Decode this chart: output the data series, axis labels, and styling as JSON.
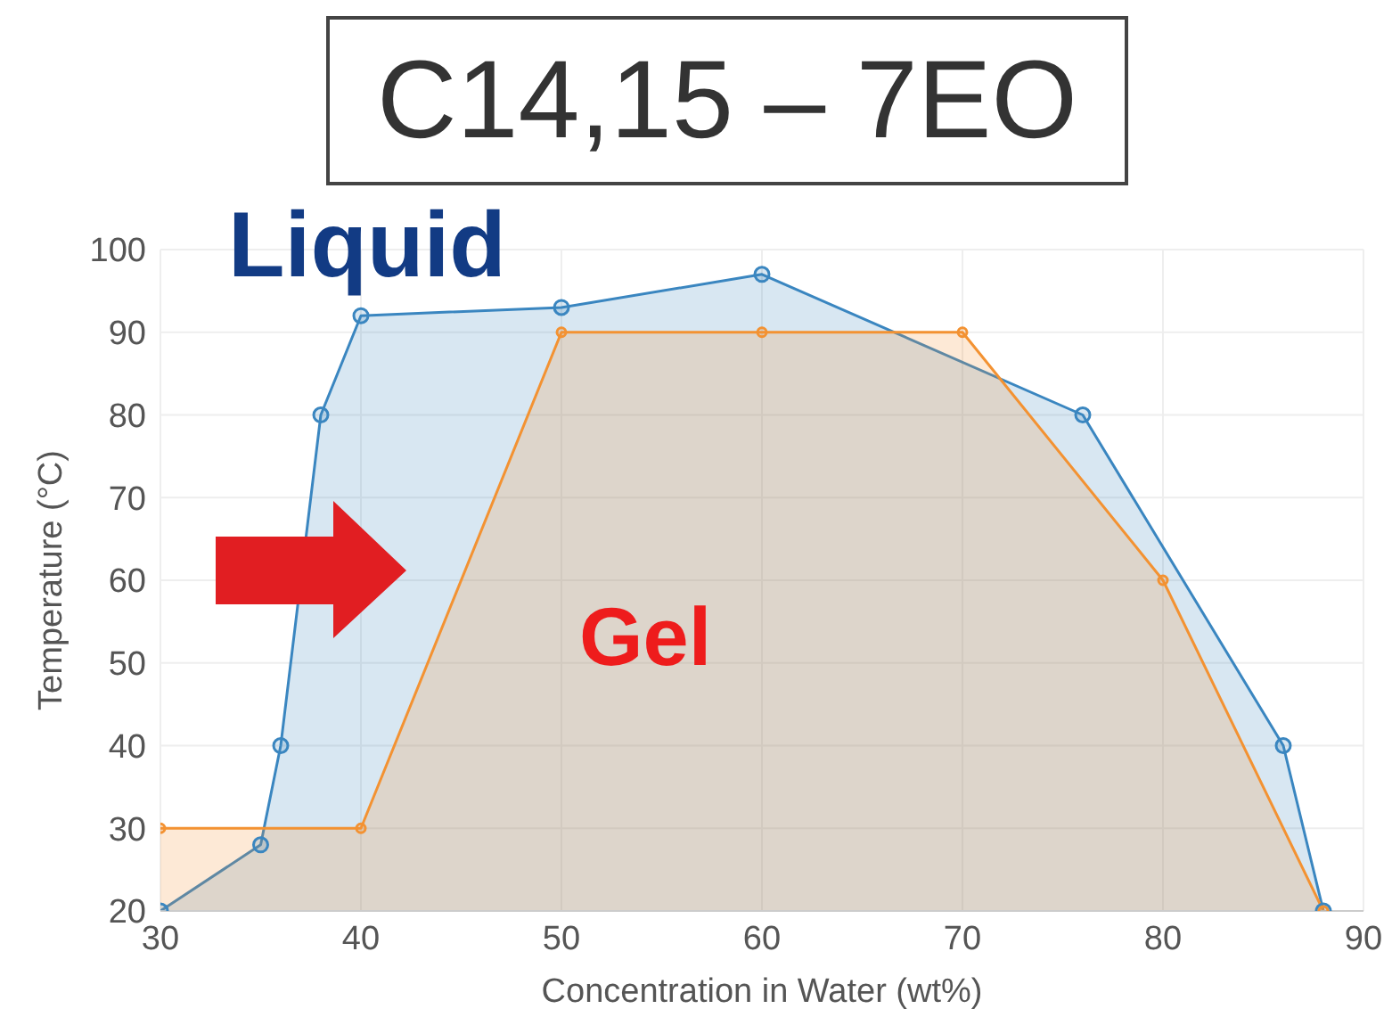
{
  "chart_data": {
    "type": "area",
    "title": "C14,15 – 7EO",
    "xlabel": "Concentration in Water (wt%)",
    "ylabel": "Temperature (°C)",
    "annotations": [
      "Liquid",
      "Gel"
    ],
    "series": [
      {
        "color": "#3a86c0",
        "x": [
          30,
          35,
          36,
          38,
          40,
          50,
          60,
          76,
          86,
          88
        ],
        "values": [
          20,
          28,
          40,
          80,
          92,
          93,
          97,
          80,
          40,
          20
        ]
      },
      {
        "color": "#f39232",
        "x": [
          30,
          40,
          50,
          60,
          70,
          80,
          88
        ],
        "values": [
          30,
          30,
          90,
          90,
          90,
          60,
          20
        ]
      }
    ],
    "xlim": [
      30,
      90
    ],
    "xticks": [
      30,
      40,
      50,
      60,
      70,
      80,
      90
    ],
    "ylim": [
      20,
      100
    ],
    "yticks": [
      20,
      30,
      40,
      50,
      60,
      70,
      80,
      90,
      100
    ],
    "grid": true,
    "marker": "circle",
    "legend": false
  }
}
